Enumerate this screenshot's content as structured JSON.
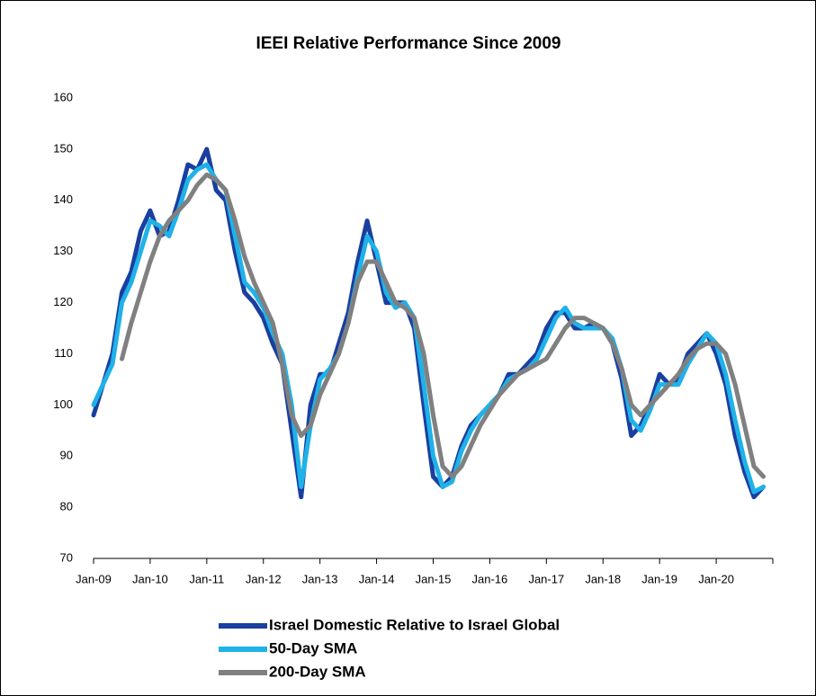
{
  "chart_data": {
    "type": "line",
    "title": "IEEI Relative Performance Since 2009",
    "x": [
      "2009-01",
      "2009-03",
      "2009-05",
      "2009-07",
      "2009-09",
      "2009-11",
      "2010-01",
      "2010-03",
      "2010-05",
      "2010-07",
      "2010-09",
      "2010-11",
      "2011-01",
      "2011-03",
      "2011-05",
      "2011-07",
      "2011-09",
      "2011-11",
      "2012-01",
      "2012-03",
      "2012-05",
      "2012-07",
      "2012-09",
      "2012-11",
      "2013-01",
      "2013-03",
      "2013-05",
      "2013-07",
      "2013-09",
      "2013-11",
      "2014-01",
      "2014-03",
      "2014-05",
      "2014-07",
      "2014-09",
      "2014-11",
      "2015-01",
      "2015-03",
      "2015-05",
      "2015-07",
      "2015-09",
      "2015-11",
      "2016-01",
      "2016-03",
      "2016-05",
      "2016-07",
      "2016-09",
      "2016-11",
      "2017-01",
      "2017-03",
      "2017-05",
      "2017-07",
      "2017-09",
      "2017-11",
      "2018-01",
      "2018-03",
      "2018-05",
      "2018-07",
      "2018-09",
      "2018-11",
      "2019-01",
      "2019-03",
      "2019-05",
      "2019-07",
      "2019-09",
      "2019-11",
      "2020-01",
      "2020-03",
      "2020-05",
      "2020-07",
      "2020-09",
      "2020-11"
    ],
    "series": [
      {
        "name": "Israel Domestic Relative to Israel Global",
        "color": "#1a3fa0",
        "values": [
          98,
          104,
          110,
          122,
          126,
          134,
          138,
          133,
          134,
          140,
          147,
          146,
          150,
          142,
          140,
          130,
          122,
          120,
          117,
          112,
          108,
          95,
          82,
          100,
          106,
          106,
          112,
          118,
          128,
          136,
          128,
          120,
          120,
          120,
          115,
          100,
          86,
          84,
          86,
          92,
          96,
          98,
          100,
          102,
          106,
          106,
          108,
          110,
          115,
          118,
          118,
          115,
          115,
          116,
          115,
          112,
          105,
          94,
          96,
          100,
          106,
          104,
          105,
          110,
          112,
          114,
          110,
          104,
          94,
          87,
          82,
          84
        ]
      },
      {
        "name": "50-Day SMA",
        "color": "#1fb2e8",
        "values": [
          100,
          104,
          108,
          120,
          124,
          130,
          136,
          135,
          133,
          138,
          144,
          146,
          147,
          144,
          142,
          133,
          124,
          122,
          119,
          114,
          110,
          100,
          84,
          96,
          105,
          107,
          110,
          116,
          125,
          133,
          130,
          122,
          119,
          120,
          117,
          104,
          90,
          84,
          85,
          91,
          95,
          98,
          100,
          102,
          105,
          106,
          107,
          109,
          113,
          117,
          119,
          116,
          115,
          115,
          115,
          113,
          107,
          97,
          95,
          99,
          104,
          104,
          104,
          108,
          111,
          114,
          112,
          106,
          97,
          89,
          83,
          84
        ]
      },
      {
        "name": "200-Day SMA",
        "color": "#808080",
        "values": [
          null,
          null,
          null,
          109,
          116,
          122,
          128,
          133,
          136,
          138,
          140,
          143,
          145,
          144,
          142,
          136,
          129,
          124,
          120,
          116,
          108,
          98,
          94,
          96,
          102,
          106,
          110,
          116,
          124,
          128,
          128,
          124,
          120,
          119,
          117,
          110,
          98,
          88,
          86,
          88,
          92,
          96,
          99,
          102,
          104,
          106,
          107,
          108,
          109,
          112,
          115,
          117,
          117,
          116,
          115,
          112,
          107,
          100,
          98,
          100,
          102,
          104,
          106,
          109,
          111,
          112,
          112,
          110,
          104,
          96,
          88,
          86
        ]
      }
    ],
    "xlim": [
      "2009-01",
      "2021-01"
    ],
    "xticks": [
      {
        "value": "2009-01",
        "label": "Jan-09"
      },
      {
        "value": "2010-01",
        "label": "Jan-10"
      },
      {
        "value": "2011-01",
        "label": "Jan-11"
      },
      {
        "value": "2012-01",
        "label": "Jan-12"
      },
      {
        "value": "2013-01",
        "label": "Jan-13"
      },
      {
        "value": "2014-01",
        "label": "Jan-14"
      },
      {
        "value": "2015-01",
        "label": "Jan-15"
      },
      {
        "value": "2016-01",
        "label": "Jan-16"
      },
      {
        "value": "2017-01",
        "label": "Jan-17"
      },
      {
        "value": "2018-01",
        "label": "Jan-18"
      },
      {
        "value": "2019-01",
        "label": "Jan-19"
      },
      {
        "value": "2020-01",
        "label": "Jan-20"
      }
    ],
    "ylim": [
      70,
      160
    ],
    "yticks": [
      70,
      80,
      90,
      100,
      110,
      120,
      130,
      140,
      150,
      160
    ],
    "grid": false,
    "legend": "bottom"
  }
}
